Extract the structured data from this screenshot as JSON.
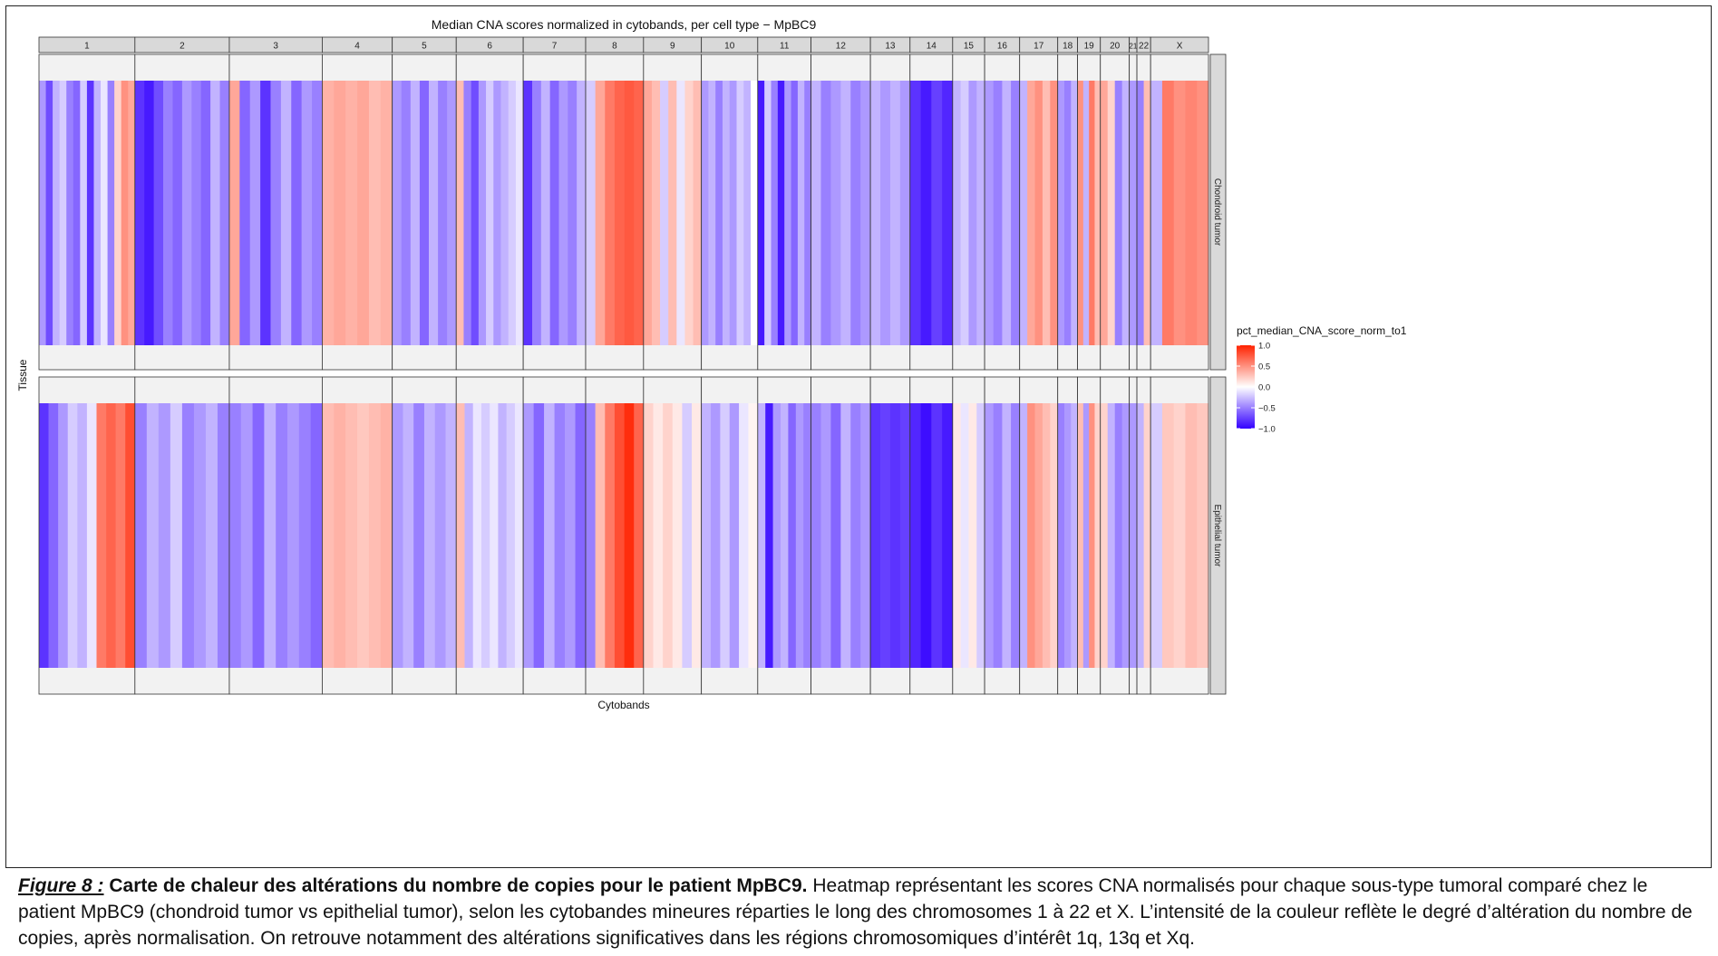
{
  "chart_data": {
    "type": "heatmap",
    "title": "Median CNA scores normalized in cytobands, per cell type − MpBC9",
    "xlabel": "Cytobands",
    "ylabel": "Tissue",
    "rows": [
      "Chondroid tumor",
      "Epithelial tumor"
    ],
    "legend": {
      "title": "pct_median_CNA_score_norm_to1",
      "ticks": [
        "1.0",
        "0.5",
        "0.0",
        "−0.5",
        "−1.0"
      ],
      "tick_values": [
        1.0,
        0.5,
        0.0,
        -0.5,
        -1.0
      ],
      "low_color": "#3300ff",
      "mid_color": "#ffffff",
      "high_color": "#ff2200",
      "placement": "right"
    },
    "chromosomes": [
      {
        "name": "1",
        "bands": 63,
        "chondroid": [
          -0.4,
          -0.7,
          -0.3,
          -0.2,
          -0.5,
          -0.6,
          -0.2,
          -0.8,
          -0.3,
          -0.1,
          -0.5,
          0.2,
          0.5,
          0.4
        ],
        "epithelial": [
          -0.8,
          -0.6,
          -0.4,
          -0.2,
          -0.3,
          -0.1,
          0.6,
          0.7,
          0.6,
          0.8
        ]
      },
      {
        "name": "2",
        "bands": 62,
        "chondroid": [
          -0.8,
          -0.9,
          -0.7,
          -0.5,
          -0.6,
          -0.4,
          -0.5,
          -0.6,
          -0.3,
          -0.5
        ],
        "epithelial": [
          -0.5,
          -0.3,
          -0.4,
          -0.2,
          -0.5,
          -0.4,
          -0.3,
          -0.5
        ]
      },
      {
        "name": "3",
        "bands": 61,
        "chondroid": [
          0.4,
          -0.6,
          -0.4,
          -0.8,
          -0.5,
          -0.3,
          -0.6,
          -0.4,
          -0.5
        ],
        "epithelial": [
          -0.5,
          -0.4,
          -0.6,
          -0.3,
          -0.5,
          -0.4,
          -0.5,
          -0.6
        ]
      },
      {
        "name": "4",
        "bands": 46,
        "chondroid": [
          0.35,
          0.4,
          0.35,
          0.4,
          0.3,
          0.35
        ],
        "epithelial": [
          0.3,
          0.35,
          0.3,
          0.25,
          0.3,
          0.35
        ]
      },
      {
        "name": "5",
        "bands": 42,
        "chondroid": [
          -0.4,
          -0.5,
          -0.3,
          -0.6,
          -0.3,
          -0.5,
          -0.4
        ],
        "epithelial": [
          -0.4,
          -0.3,
          -0.5,
          -0.3,
          -0.4,
          -0.3
        ]
      },
      {
        "name": "6",
        "bands": 44,
        "chondroid": [
          0.3,
          -0.5,
          -0.7,
          -0.4,
          -0.2,
          -0.4,
          -0.3,
          -0.2,
          -0.1
        ],
        "epithelial": [
          0.3,
          -0.3,
          -0.1,
          -0.2,
          -0.1,
          -0.3,
          -0.2,
          -0.1
        ]
      },
      {
        "name": "7",
        "bands": 41,
        "chondroid": [
          -0.8,
          -0.5,
          -0.3,
          -0.6,
          -0.4,
          -0.5,
          -0.3
        ],
        "epithelial": [
          -0.4,
          -0.6,
          -0.3,
          -0.5,
          -0.4,
          -0.6
        ]
      },
      {
        "name": "8",
        "bands": 38,
        "chondroid": [
          -0.2,
          0.4,
          0.6,
          0.7,
          0.75,
          0.7
        ],
        "epithelial": [
          -0.5,
          0.3,
          0.6,
          0.8,
          0.95,
          0.7
        ]
      },
      {
        "name": "9",
        "bands": 38,
        "chondroid": [
          0.4,
          0.3,
          -0.2,
          0.3,
          -0.1,
          0.2,
          0.3
        ],
        "epithelial": [
          0.2,
          0.1,
          0.2,
          0.1,
          -0.2,
          0.1
        ]
      },
      {
        "name": "10",
        "bands": 37,
        "chondroid": [
          -0.4,
          -0.3,
          -0.5,
          -0.3,
          -0.4,
          -0.2,
          -0.3,
          0.0
        ],
        "epithelial": [
          -0.3,
          -0.4,
          -0.2,
          -0.4,
          -0.1,
          0.05
        ]
      },
      {
        "name": "11",
        "bands": 35,
        "chondroid": [
          -0.9,
          -0.2,
          -0.5,
          -0.9,
          -0.4,
          -0.6,
          -0.3,
          -0.5
        ],
        "epithelial": [
          -0.3,
          -0.9,
          -0.4,
          -0.3,
          -0.6,
          -0.4,
          -0.5
        ]
      },
      {
        "name": "12",
        "bands": 39,
        "chondroid": [
          -0.3,
          -0.5,
          -0.4,
          -0.3,
          -0.5,
          -0.4
        ],
        "epithelial": [
          -0.5,
          -0.4,
          -0.6,
          -0.3,
          -0.5,
          -0.4
        ]
      },
      {
        "name": "13",
        "bands": 26,
        "chondroid": [
          -0.3,
          -0.4,
          -0.3,
          -0.4
        ],
        "epithelial": [
          -0.8,
          -0.75,
          -0.8,
          -0.75
        ]
      },
      {
        "name": "14",
        "bands": 28,
        "chondroid": [
          -0.8,
          -0.9,
          -0.75,
          -0.85
        ],
        "epithelial": [
          -0.85,
          -0.95,
          -0.8,
          -0.9
        ]
      },
      {
        "name": "15",
        "bands": 21,
        "chondroid": [
          -0.3,
          -0.2,
          -0.4,
          -0.3
        ],
        "epithelial": [
          0.1,
          -0.1,
          0.1,
          -0.2
        ]
      },
      {
        "name": "16",
        "bands": 23,
        "chondroid": [
          -0.4,
          -0.5,
          -0.3,
          -0.5
        ],
        "epithelial": [
          -0.4,
          -0.5,
          -0.3,
          -0.5
        ]
      },
      {
        "name": "17",
        "bands": 25,
        "chondroid": [
          -0.3,
          0.4,
          0.5,
          0.3,
          0.5
        ],
        "epithelial": [
          -0.3,
          0.5,
          0.4,
          0.3,
          0.2
        ]
      },
      {
        "name": "18",
        "bands": 13,
        "chondroid": [
          -0.4,
          -0.5,
          -0.3
        ],
        "epithelial": [
          -0.5,
          -0.4,
          -0.3
        ]
      },
      {
        "name": "19",
        "bands": 15,
        "chondroid": [
          0.5,
          -0.3,
          0.6,
          0.3
        ],
        "epithelial": [
          0.3,
          -0.4,
          0.5,
          0.2
        ]
      },
      {
        "name": "20",
        "bands": 19,
        "chondroid": [
          0.4,
          0.2,
          -0.5,
          -0.3
        ],
        "epithelial": [
          0.2,
          -0.3,
          -0.5,
          -0.4
        ]
      },
      {
        "name": "21",
        "bands": 5,
        "chondroid": [
          -0.4
        ],
        "epithelial": [
          -0.4
        ]
      },
      {
        "name": "22",
        "bands": 9,
        "chondroid": [
          -0.5,
          0.3
        ],
        "epithelial": [
          -0.3,
          0.2
        ]
      },
      {
        "name": "X",
        "bands": 38,
        "chondroid": [
          -0.3,
          0.6,
          0.5,
          0.55,
          0.5
        ],
        "epithelial": [
          -0.2,
          0.25,
          0.2,
          0.3,
          0.25
        ]
      }
    ]
  },
  "caption": {
    "label": "Figure 8 :",
    "heading": "Carte de chaleur des altérations du nombre de copies pour le patient MpBC9.",
    "body": "Heatmap représentant les scores CNA normalisés pour chaque sous-type tumoral comparé chez le patient MpBC9 (chondroid tumor vs epithelial tumor), selon les cytobandes mineures réparties le long des chromosomes 1 à 22 et X. L’intensité de la couleur reflète le degré d’altération du nombre de copies, après normalisation. On retrouve notamment des altérations significatives dans les régions chromosomiques d’intérêt 1q, 13q et Xq."
  }
}
